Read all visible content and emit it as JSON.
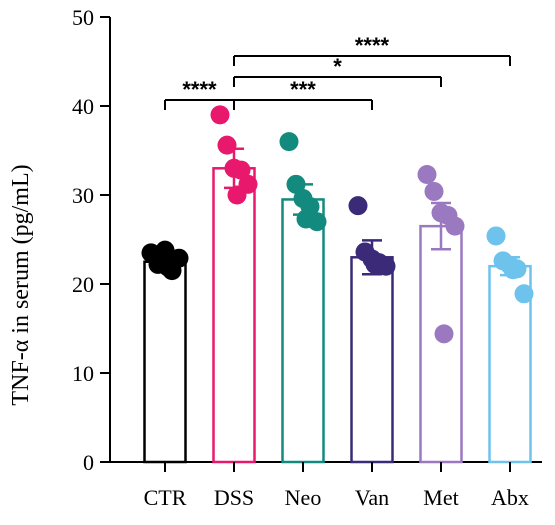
{
  "chart_data": {
    "type": "bar",
    "ylabel": "TNF-α in serum (pg/mL)",
    "ylim": [
      0,
      50
    ],
    "yticks": [
      0,
      10,
      20,
      30,
      40,
      50
    ],
    "categories": [
      "CTR",
      "DSS",
      "Neo",
      "Van",
      "Met",
      "Abx"
    ],
    "colors": [
      "#000000",
      "#e8186d",
      "#138a7e",
      "#3b2a78",
      "#9b79c0",
      "#6ec3ec"
    ],
    "means": [
      22.5,
      33.0,
      29.5,
      23.0,
      26.5,
      22.0
    ],
    "sem": [
      0.6,
      2.2,
      1.7,
      1.9,
      2.6,
      1.0
    ],
    "points": [
      [
        23.5,
        22.2,
        23.8,
        21.5,
        22.9,
        21.9
      ],
      [
        39.0,
        35.6,
        33.0,
        32.8,
        31.2,
        30.0
      ],
      [
        36.0,
        31.2,
        29.6,
        28.7,
        27.0,
        27.3
      ],
      [
        28.8,
        23.6,
        22.8,
        22.4,
        22.0,
        22.2
      ],
      [
        32.3,
        30.4,
        28.0,
        27.7,
        26.5,
        14.4
      ],
      [
        25.4,
        22.6,
        22.1,
        21.7,
        18.9,
        21.6
      ]
    ],
    "significance": [
      {
        "from": "CTR",
        "to": "DSS",
        "label": "****"
      },
      {
        "from": "DSS",
        "to": "Van",
        "label": "***"
      },
      {
        "from": "DSS",
        "to": "Met",
        "label": "*"
      },
      {
        "from": "DSS",
        "to": "Abx",
        "label": "****"
      }
    ]
  }
}
